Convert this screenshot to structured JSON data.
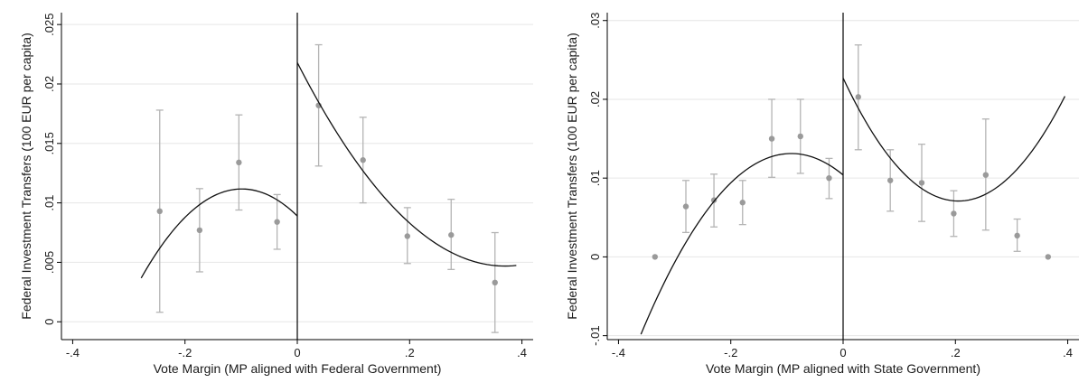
{
  "chart_data": [
    {
      "type": "scatter",
      "title": "",
      "xlabel": "Vote Margin (MP aligned with Federal Government)",
      "ylabel": "Federal Investment Transfers (100 EUR per capita)",
      "xlim": [
        -0.42,
        0.42
      ],
      "ylim": [
        -0.0015,
        0.026
      ],
      "xticks": [
        -0.4,
        -0.2,
        0,
        0.2,
        0.4
      ],
      "xtick_labels": [
        "-.4",
        "-.2",
        "0",
        ".2",
        ".4"
      ],
      "yticks": [
        0,
        0.005,
        0.01,
        0.015,
        0.02,
        0.025
      ],
      "ytick_labels": [
        "0",
        ".005",
        ".01",
        ".015",
        ".02",
        ".025"
      ],
      "grid": true,
      "cutoff": 0,
      "bins": [
        {
          "x": -0.245,
          "y": 0.0093,
          "lo": 0.0008,
          "hi": 0.0178
        },
        {
          "x": -0.174,
          "y": 0.0077,
          "lo": 0.0042,
          "hi": 0.0112
        },
        {
          "x": -0.104,
          "y": 0.0134,
          "lo": 0.0094,
          "hi": 0.0174
        },
        {
          "x": -0.036,
          "y": 0.0084,
          "lo": 0.0061,
          "hi": 0.0107
        },
        {
          "x": 0.038,
          "y": 0.0182,
          "lo": 0.0131,
          "hi": 0.0233
        },
        {
          "x": 0.117,
          "y": 0.0136,
          "lo": 0.01,
          "hi": 0.0172
        },
        {
          "x": 0.196,
          "y": 0.0072,
          "lo": 0.0049,
          "hi": 0.0096
        },
        {
          "x": 0.274,
          "y": 0.0073,
          "lo": 0.0044,
          "hi": 0.0103
        },
        {
          "x": 0.352,
          "y": 0.0033,
          "lo": -0.0009,
          "hi": 0.0075
        }
      ],
      "fit_left": {
        "x_range": [
          -0.278,
          0
        ],
        "coef": [
          0.0089,
          -0.046,
          -0.233
        ]
      },
      "fit_right": {
        "x_range": [
          0,
          0.39
        ],
        "coef": [
          0.0218,
          -0.0925,
          0.125
        ]
      }
    },
    {
      "type": "scatter",
      "title": "",
      "xlabel": "Vote Margin (MP aligned with State Government)",
      "ylabel": "Federal Investment Transfers (100 EUR per capita)",
      "xlim": [
        -0.42,
        0.42
      ],
      "ylim": [
        -0.0105,
        0.031
      ],
      "xticks": [
        -0.4,
        -0.2,
        0,
        0.2,
        0.4
      ],
      "xtick_labels": [
        "-.4",
        "-.2",
        "0",
        ".2",
        ".4"
      ],
      "yticks": [
        -0.01,
        0,
        0.01,
        0.02,
        0.03
      ],
      "ytick_labels": [
        "-.01",
        "0",
        ".01",
        ".02",
        ".03"
      ],
      "grid": true,
      "cutoff": 0,
      "bins": [
        {
          "x": -0.335,
          "y": 0.0,
          "lo": null,
          "hi": null
        },
        {
          "x": -0.28,
          "y": 0.0064,
          "lo": 0.0031,
          "hi": 0.0097
        },
        {
          "x": -0.23,
          "y": 0.0072,
          "lo": 0.0038,
          "hi": 0.0105
        },
        {
          "x": -0.179,
          "y": 0.0069,
          "lo": 0.0041,
          "hi": 0.0097
        },
        {
          "x": -0.127,
          "y": 0.015,
          "lo": 0.0101,
          "hi": 0.02
        },
        {
          "x": -0.076,
          "y": 0.0153,
          "lo": 0.0106,
          "hi": 0.02
        },
        {
          "x": -0.025,
          "y": 0.01,
          "lo": 0.0074,
          "hi": 0.0125
        },
        {
          "x": 0.027,
          "y": 0.0203,
          "lo": 0.0136,
          "hi": 0.0269
        },
        {
          "x": 0.084,
          "y": 0.0097,
          "lo": 0.0058,
          "hi": 0.0136
        },
        {
          "x": 0.14,
          "y": 0.0094,
          "lo": 0.0045,
          "hi": 0.0143
        },
        {
          "x": 0.197,
          "y": 0.0055,
          "lo": 0.0026,
          "hi": 0.0084
        },
        {
          "x": 0.254,
          "y": 0.0104,
          "lo": 0.0034,
          "hi": 0.0175
        },
        {
          "x": 0.31,
          "y": 0.0027,
          "lo": 0.0007,
          "hi": 0.0048
        },
        {
          "x": 0.365,
          "y": 0.0,
          "lo": null,
          "hi": null
        }
      ],
      "fit_left": {
        "x_range": [
          -0.36,
          0
        ],
        "coef": [
          0.0104,
          -0.059,
          -0.32
        ]
      },
      "fit_right": {
        "x_range": [
          0,
          0.395
        ],
        "coef": [
          0.0227,
          -0.152,
          0.37
        ]
      }
    }
  ]
}
